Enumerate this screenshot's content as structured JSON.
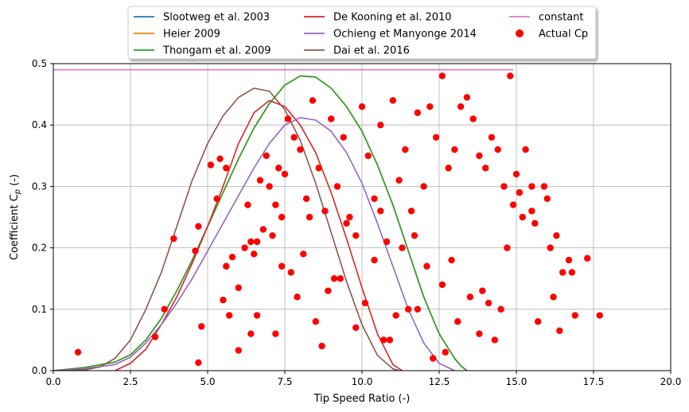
{
  "chart_data": {
    "type": "scatter",
    "title": "",
    "xlabel": "Tip Speed Ratio (-)",
    "ylabel": "Coefficient C",
    "ylabel_sub": "p",
    "ylabel_suffix": " (-)",
    "xlim": [
      0,
      20
    ],
    "ylim": [
      0,
      0.5
    ],
    "xticks": [
      0,
      2.5,
      5,
      7.5,
      10,
      12.5,
      15,
      17.5,
      20
    ],
    "xtick_labels": [
      "0.0",
      "2.5",
      "5.0",
      "7.5",
      "10.0",
      "12.5",
      "15.0",
      "17.5",
      "20.0"
    ],
    "yticks": [
      0,
      0.1,
      0.2,
      0.3,
      0.4,
      0.5
    ],
    "ytick_labels": [
      "0.0",
      "0.1",
      "0.2",
      "0.3",
      "0.4",
      "0.5"
    ],
    "grid": true,
    "legend_position": "top-center, above plot, 3 columns",
    "series": [
      {
        "name": "Slootweg et al. 2003",
        "kind": "line",
        "color": "#1f77b4",
        "x": [
          0,
          1,
          2,
          2.5,
          3,
          3.5,
          4,
          4.5,
          5,
          5.5,
          6,
          6.5,
          7,
          7.5,
          8,
          8.5,
          9,
          9.5,
          10,
          10.5,
          11,
          11.5,
          12,
          12.5,
          13,
          13.2,
          13.4
        ],
        "y": [
          0,
          0.005,
          0.014,
          0.026,
          0.05,
          0.085,
          0.13,
          0.18,
          0.235,
          0.29,
          0.345,
          0.395,
          0.435,
          0.465,
          0.48,
          0.478,
          0.46,
          0.43,
          0.39,
          0.335,
          0.27,
          0.195,
          0.12,
          0.06,
          0.02,
          0.008,
          0
        ]
      },
      {
        "name": "Heier 2009",
        "kind": "line",
        "color": "#ff7f0e",
        "x": [
          0,
          1,
          2,
          2.5,
          3,
          3.5,
          4,
          4.5,
          5,
          5.5,
          6,
          6.5,
          7,
          7.5,
          8,
          8.5,
          9,
          9.5,
          10,
          10.5,
          11,
          11.5,
          12,
          12.5,
          13,
          13.2,
          13.4
        ],
        "y": [
          0,
          0.005,
          0.014,
          0.026,
          0.05,
          0.085,
          0.13,
          0.18,
          0.235,
          0.29,
          0.345,
          0.395,
          0.435,
          0.465,
          0.48,
          0.478,
          0.46,
          0.43,
          0.39,
          0.335,
          0.27,
          0.195,
          0.12,
          0.06,
          0.02,
          0.008,
          0
        ]
      },
      {
        "name": "Thongam et al. 2009",
        "kind": "line",
        "color": "#2ca02c",
        "x": [
          0,
          1,
          2,
          2.5,
          3,
          3.5,
          4,
          4.5,
          5,
          5.5,
          6,
          6.5,
          7,
          7.5,
          8,
          8.5,
          9,
          9.5,
          10,
          10.5,
          11,
          11.5,
          12,
          12.5,
          13,
          13.2,
          13.4
        ],
        "y": [
          0,
          0.005,
          0.014,
          0.026,
          0.05,
          0.085,
          0.13,
          0.18,
          0.235,
          0.29,
          0.345,
          0.395,
          0.435,
          0.465,
          0.48,
          0.478,
          0.46,
          0.43,
          0.39,
          0.335,
          0.27,
          0.195,
          0.12,
          0.06,
          0.02,
          0.008,
          0
        ]
      },
      {
        "name": "De Kooning et al. 2010",
        "kind": "line",
        "color": "#d62728",
        "x": [
          2,
          2.5,
          3,
          3.5,
          4,
          4.5,
          5,
          5.5,
          6,
          6.5,
          7,
          7.5,
          8,
          8.5,
          9,
          9.5,
          10,
          10.5,
          11,
          11.3
        ],
        "y": [
          0,
          0.012,
          0.035,
          0.075,
          0.12,
          0.175,
          0.235,
          0.3,
          0.37,
          0.42,
          0.44,
          0.43,
          0.4,
          0.355,
          0.29,
          0.215,
          0.135,
          0.06,
          0.01,
          0
        ]
      },
      {
        "name": "Ochieng et Manyonge 2014",
        "kind": "line",
        "color": "#9467bd",
        "x": [
          0,
          1,
          2,
          2.5,
          3,
          3.5,
          4,
          4.5,
          5,
          5.5,
          6,
          6.5,
          7,
          7.5,
          8,
          8.5,
          9,
          9.5,
          10,
          10.5,
          11,
          11.5,
          12,
          12.5,
          13
        ],
        "y": [
          0,
          0.003,
          0.01,
          0.022,
          0.045,
          0.075,
          0.11,
          0.15,
          0.195,
          0.24,
          0.285,
          0.33,
          0.37,
          0.4,
          0.412,
          0.408,
          0.39,
          0.355,
          0.305,
          0.24,
          0.17,
          0.1,
          0.045,
          0.012,
          0
        ]
      },
      {
        "name": "Dai et al. 2016",
        "kind": "line",
        "color": "#8c564b",
        "x": [
          0,
          1,
          1.5,
          2,
          2.5,
          3,
          3.5,
          4,
          4.5,
          5,
          5.5,
          6,
          6.5,
          7,
          7.5,
          8,
          8.5,
          9,
          9.5,
          10,
          10.5,
          11,
          11.2
        ],
        "y": [
          0,
          0.001,
          0.006,
          0.02,
          0.05,
          0.1,
          0.16,
          0.235,
          0.31,
          0.37,
          0.415,
          0.445,
          0.46,
          0.455,
          0.425,
          0.375,
          0.305,
          0.225,
          0.145,
          0.075,
          0.025,
          0.003,
          0
        ]
      },
      {
        "name": "constant",
        "kind": "line",
        "color": "#e377c2",
        "x": [
          0,
          14.9
        ],
        "y": [
          0.49,
          0.49
        ]
      },
      {
        "name": "Actual Cp",
        "kind": "scatter",
        "color": "#ff0000",
        "x": [
          0.8,
          3.3,
          3.6,
          3.9,
          4.6,
          4.7,
          4.7,
          4.8,
          5.1,
          5.3,
          5.6,
          5.4,
          5.6,
          5.8,
          6.0,
          6.2,
          6.4,
          6.5,
          6.0,
          5.5,
          5.7,
          6.4,
          6.6,
          6.9,
          7.0,
          7.2,
          7.4,
          7.5,
          7.6,
          7.8,
          8.0,
          8.2,
          8.4,
          8.6,
          8.8,
          9.0,
          9.2,
          9.4,
          9.6,
          9.8,
          10.0,
          10.2,
          10.4,
          10.6,
          10.8,
          11.0,
          11.2,
          11.4,
          11.6,
          11.8,
          12.0,
          12.2,
          12.4,
          12.6,
          12.8,
          13.0,
          13.2,
          13.4,
          13.6,
          13.8,
          14.0,
          14.2,
          14.4,
          14.6,
          14.8,
          14.7,
          15.0,
          15.3,
          15.5,
          15.6,
          15.9,
          16.1,
          16.3,
          16.5,
          16.7,
          16.9,
          16.8,
          17.3,
          17.7,
          16.4,
          16.0,
          15.5,
          15.2,
          14.1,
          13.8,
          12.7,
          11.5,
          10.7,
          9.3,
          8.5,
          7.4,
          6.6,
          7.2,
          7.9,
          8.7,
          9.8,
          10.9,
          11.8,
          12.3,
          13.1,
          6.8,
          7.7,
          8.9,
          10.1,
          11.1,
          12.6,
          13.5,
          14.3,
          6.3,
          7.1,
          8.1,
          9.1,
          10.4,
          11.3,
          12.1,
          13.9,
          14.5,
          15.7,
          16.2,
          6.7,
          7.3,
          8.3,
          9.5,
          10.6,
          11.7,
          12.9,
          14.9,
          15.1
        ],
        "y": [
          0.03,
          0.055,
          0.1,
          0.215,
          0.195,
          0.235,
          0.013,
          0.072,
          0.335,
          0.28,
          0.33,
          0.345,
          0.17,
          0.185,
          0.135,
          0.2,
          0.21,
          0.19,
          0.033,
          0.115,
          0.09,
          0.06,
          0.21,
          0.35,
          0.3,
          0.27,
          0.25,
          0.32,
          0.41,
          0.38,
          0.36,
          0.28,
          0.44,
          0.33,
          0.26,
          0.41,
          0.3,
          0.38,
          0.25,
          0.22,
          0.43,
          0.35,
          0.28,
          0.4,
          0.21,
          0.44,
          0.31,
          0.36,
          0.26,
          0.42,
          0.3,
          0.43,
          0.38,
          0.48,
          0.33,
          0.36,
          0.43,
          0.445,
          0.41,
          0.35,
          0.33,
          0.38,
          0.36,
          0.3,
          0.48,
          0.2,
          0.32,
          0.36,
          0.3,
          0.24,
          0.3,
          0.2,
          0.22,
          0.16,
          0.18,
          0.09,
          0.16,
          0.183,
          0.09,
          0.065,
          0.28,
          0.26,
          0.25,
          0.11,
          0.06,
          0.03,
          0.1,
          0.05,
          0.15,
          0.08,
          0.17,
          0.09,
          0.06,
          0.12,
          0.04,
          0.07,
          0.05,
          0.1,
          0.02,
          0.08,
          0.23,
          0.16,
          0.13,
          0.11,
          0.09,
          0.14,
          0.12,
          0.05,
          0.27,
          0.22,
          0.19,
          0.15,
          0.18,
          0.2,
          0.17,
          0.13,
          0.1,
          0.08,
          0.12,
          0.31,
          0.33,
          0.25,
          0.24,
          0.26,
          0.22,
          0.18,
          0.27,
          0.29
        ]
      }
    ]
  }
}
